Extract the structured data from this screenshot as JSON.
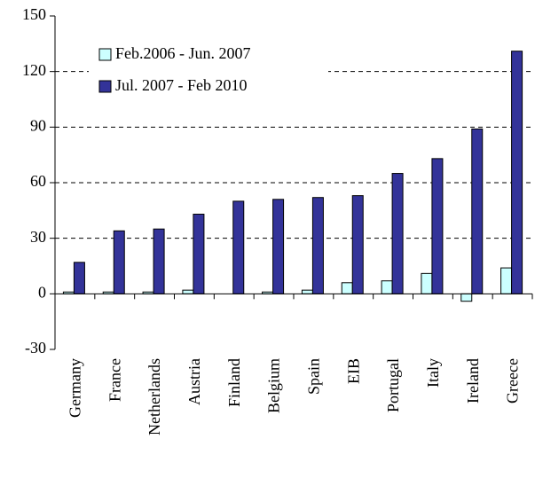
{
  "chart_data": {
    "type": "bar",
    "categories": [
      "Germany",
      "France",
      "Netherlands",
      "Austria",
      "Finland",
      "Belgium",
      "Spain",
      "EIB",
      "Portugal",
      "Italy",
      "Ireland",
      "Greece"
    ],
    "series": [
      {
        "name": "Feb.2006 - Jun. 2007",
        "color": "#ccffff",
        "values": [
          1,
          1,
          1,
          2,
          0,
          1,
          2,
          6,
          7,
          11,
          -4,
          14
        ]
      },
      {
        "name": "Jul. 2007 - Feb 2010",
        "color": "#333399",
        "values": [
          17,
          34,
          35,
          43,
          50,
          51,
          52,
          53,
          65,
          73,
          89,
          131
        ]
      }
    ],
    "ylim": [
      -30,
      150
    ],
    "yticks": [
      -30,
      0,
      30,
      60,
      90,
      120,
      150
    ],
    "grid": true,
    "legend": "upper left"
  }
}
